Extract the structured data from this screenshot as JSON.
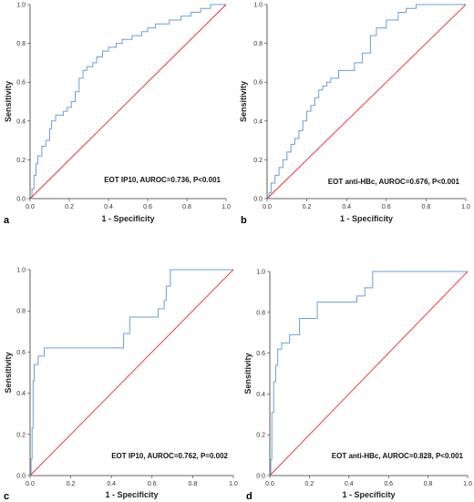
{
  "colors": {
    "roc": "#6a9fd8",
    "reference": "#e8272f",
    "axis": "#333333"
  },
  "chart_data": [
    {
      "panel": "a",
      "type": "line",
      "xlabel": "1 - Specificity",
      "ylabel": "Sensitivity",
      "annotation": "EOT IP10, AUROC=0.736, P<0.001",
      "xlim": [
        0,
        1
      ],
      "ylim": [
        0,
        1
      ],
      "xticks": [
        "0.0",
        "0.2",
        "0.4",
        "0.6",
        "0.8",
        "1.0"
      ],
      "yticks": [
        "0.0",
        "0.2",
        "0.4",
        "0.6",
        "0.8",
        "1.0"
      ],
      "grid": false,
      "series": [
        {
          "role": "roc",
          "x": [
            0,
            0.01,
            0.01,
            0.02,
            0.02,
            0.03,
            0.03,
            0.04,
            0.04,
            0.06,
            0.06,
            0.08,
            0.08,
            0.1,
            0.1,
            0.11,
            0.11,
            0.13,
            0.13,
            0.17,
            0.17,
            0.19,
            0.19,
            0.21,
            0.21,
            0.23,
            0.23,
            0.25,
            0.25,
            0.27,
            0.27,
            0.29,
            0.29,
            0.32,
            0.32,
            0.34,
            0.34,
            0.37,
            0.37,
            0.4,
            0.4,
            0.44,
            0.44,
            0.47,
            0.47,
            0.52,
            0.52,
            0.57,
            0.57,
            0.6,
            0.6,
            0.64,
            0.64,
            0.71,
            0.71,
            0.77,
            0.77,
            0.82,
            0.82,
            0.87,
            0.87,
            0.92,
            0.92,
            1.0
          ],
          "y": [
            0,
            0,
            0.05,
            0.05,
            0.12,
            0.12,
            0.18,
            0.18,
            0.22,
            0.22,
            0.27,
            0.27,
            0.3,
            0.3,
            0.36,
            0.36,
            0.4,
            0.4,
            0.43,
            0.43,
            0.45,
            0.45,
            0.47,
            0.47,
            0.5,
            0.5,
            0.55,
            0.55,
            0.62,
            0.62,
            0.66,
            0.66,
            0.68,
            0.68,
            0.7,
            0.7,
            0.73,
            0.73,
            0.76,
            0.76,
            0.78,
            0.78,
            0.8,
            0.8,
            0.82,
            0.82,
            0.84,
            0.84,
            0.86,
            0.86,
            0.88,
            0.88,
            0.9,
            0.9,
            0.92,
            0.92,
            0.94,
            0.94,
            0.96,
            0.96,
            0.98,
            0.98,
            1.0,
            1.0
          ]
        },
        {
          "role": "reference",
          "x": [
            0,
            1
          ],
          "y": [
            0,
            1
          ]
        }
      ]
    },
    {
      "panel": "b",
      "type": "line",
      "xlabel": "1 - Specificity",
      "ylabel": "Sensitivity",
      "annotation": "EOT anti-HBc, AUROC=0.676, P<0.001",
      "xlim": [
        0,
        1
      ],
      "ylim": [
        0,
        1
      ],
      "xticks": [
        "0.0",
        "0.2",
        "0.4",
        "0.6",
        "0.8",
        "1.0"
      ],
      "yticks": [
        "0.0",
        "0.2",
        "0.4",
        "0.6",
        "0.8",
        "1.0"
      ],
      "grid": false,
      "series": [
        {
          "role": "roc",
          "x": [
            0,
            0.01,
            0.01,
            0.02,
            0.02,
            0.04,
            0.04,
            0.06,
            0.06,
            0.08,
            0.08,
            0.1,
            0.1,
            0.12,
            0.12,
            0.14,
            0.14,
            0.16,
            0.16,
            0.18,
            0.18,
            0.2,
            0.2,
            0.22,
            0.22,
            0.24,
            0.24,
            0.26,
            0.26,
            0.28,
            0.28,
            0.3,
            0.3,
            0.32,
            0.32,
            0.36,
            0.36,
            0.44,
            0.44,
            0.48,
            0.48,
            0.52,
            0.52,
            0.55,
            0.55,
            0.6,
            0.6,
            0.66,
            0.66,
            0.7,
            0.7,
            0.75,
            0.75,
            1.0
          ],
          "y": [
            0,
            0,
            0.03,
            0.03,
            0.08,
            0.08,
            0.12,
            0.12,
            0.16,
            0.16,
            0.2,
            0.2,
            0.24,
            0.24,
            0.28,
            0.28,
            0.31,
            0.31,
            0.35,
            0.35,
            0.4,
            0.4,
            0.45,
            0.45,
            0.48,
            0.48,
            0.52,
            0.52,
            0.56,
            0.56,
            0.58,
            0.58,
            0.6,
            0.6,
            0.62,
            0.62,
            0.66,
            0.66,
            0.7,
            0.7,
            0.75,
            0.75,
            0.84,
            0.84,
            0.88,
            0.88,
            0.92,
            0.92,
            0.96,
            0.96,
            0.98,
            0.98,
            1.0,
            1.0
          ]
        },
        {
          "role": "reference",
          "x": [
            0,
            1
          ],
          "y": [
            0,
            1
          ]
        }
      ]
    },
    {
      "panel": "c",
      "type": "line",
      "xlabel": "1 - Specificity",
      "ylabel": "Sensitivity",
      "annotation": "EOT IP10, AUROC=0.762, P=0.002",
      "xlim": [
        0,
        1
      ],
      "ylim": [
        0,
        1
      ],
      "xticks": [
        "0.0",
        "0.2",
        "0.4",
        "0.6",
        "0.8",
        "1.0"
      ],
      "yticks": [
        "0.0",
        "0.2",
        "0.4",
        "0.6",
        "0.8",
        "1.0"
      ],
      "grid": false,
      "series": [
        {
          "role": "roc",
          "x": [
            0,
            0.005,
            0.005,
            0.01,
            0.01,
            0.015,
            0.015,
            0.02,
            0.02,
            0.04,
            0.04,
            0.07,
            0.07,
            0.46,
            0.46,
            0.49,
            0.49,
            0.63,
            0.63,
            0.66,
            0.66,
            0.67,
            0.67,
            0.69,
            0.69,
            1.0
          ],
          "y": [
            0,
            0,
            0.08,
            0.08,
            0.23,
            0.23,
            0.46,
            0.46,
            0.54,
            0.54,
            0.58,
            0.58,
            0.62,
            0.62,
            0.69,
            0.69,
            0.77,
            0.77,
            0.81,
            0.81,
            0.85,
            0.85,
            0.92,
            0.92,
            1.0,
            1.0
          ]
        },
        {
          "role": "reference",
          "x": [
            0,
            1
          ],
          "y": [
            0,
            1
          ]
        }
      ]
    },
    {
      "panel": "d",
      "type": "line",
      "xlabel": "1 - Specificity",
      "ylabel": "Sensitivity",
      "annotation": "EOT anti-HBc, AUROC=0.828, P<0.001",
      "xlim": [
        0,
        1
      ],
      "ylim": [
        0,
        1
      ],
      "xticks": [
        "0.0",
        "0.2",
        "0.4",
        "0.6",
        "0.8",
        "1.0"
      ],
      "yticks": [
        "0.0",
        "0.2",
        "0.4",
        "0.6",
        "0.8",
        "1.0"
      ],
      "grid": false,
      "series": [
        {
          "role": "roc",
          "x": [
            0,
            0.005,
            0.005,
            0.01,
            0.01,
            0.02,
            0.02,
            0.03,
            0.03,
            0.04,
            0.04,
            0.06,
            0.06,
            0.1,
            0.1,
            0.12,
            0.12,
            0.15,
            0.15,
            0.24,
            0.24,
            0.27,
            0.27,
            0.44,
            0.44,
            0.48,
            0.48,
            0.52,
            0.52,
            0.78,
            0.78,
            1.0
          ],
          "y": [
            0,
            0,
            0.08,
            0.08,
            0.31,
            0.31,
            0.46,
            0.46,
            0.54,
            0.54,
            0.62,
            0.62,
            0.65,
            0.65,
            0.69,
            0.69,
            0.69,
            0.69,
            0.77,
            0.77,
            0.85,
            0.85,
            0.85,
            0.85,
            0.88,
            0.88,
            0.92,
            0.92,
            1.0,
            1.0,
            1.0,
            1.0
          ]
        },
        {
          "role": "reference",
          "x": [
            0,
            1
          ],
          "y": [
            0,
            1
          ]
        }
      ]
    }
  ]
}
